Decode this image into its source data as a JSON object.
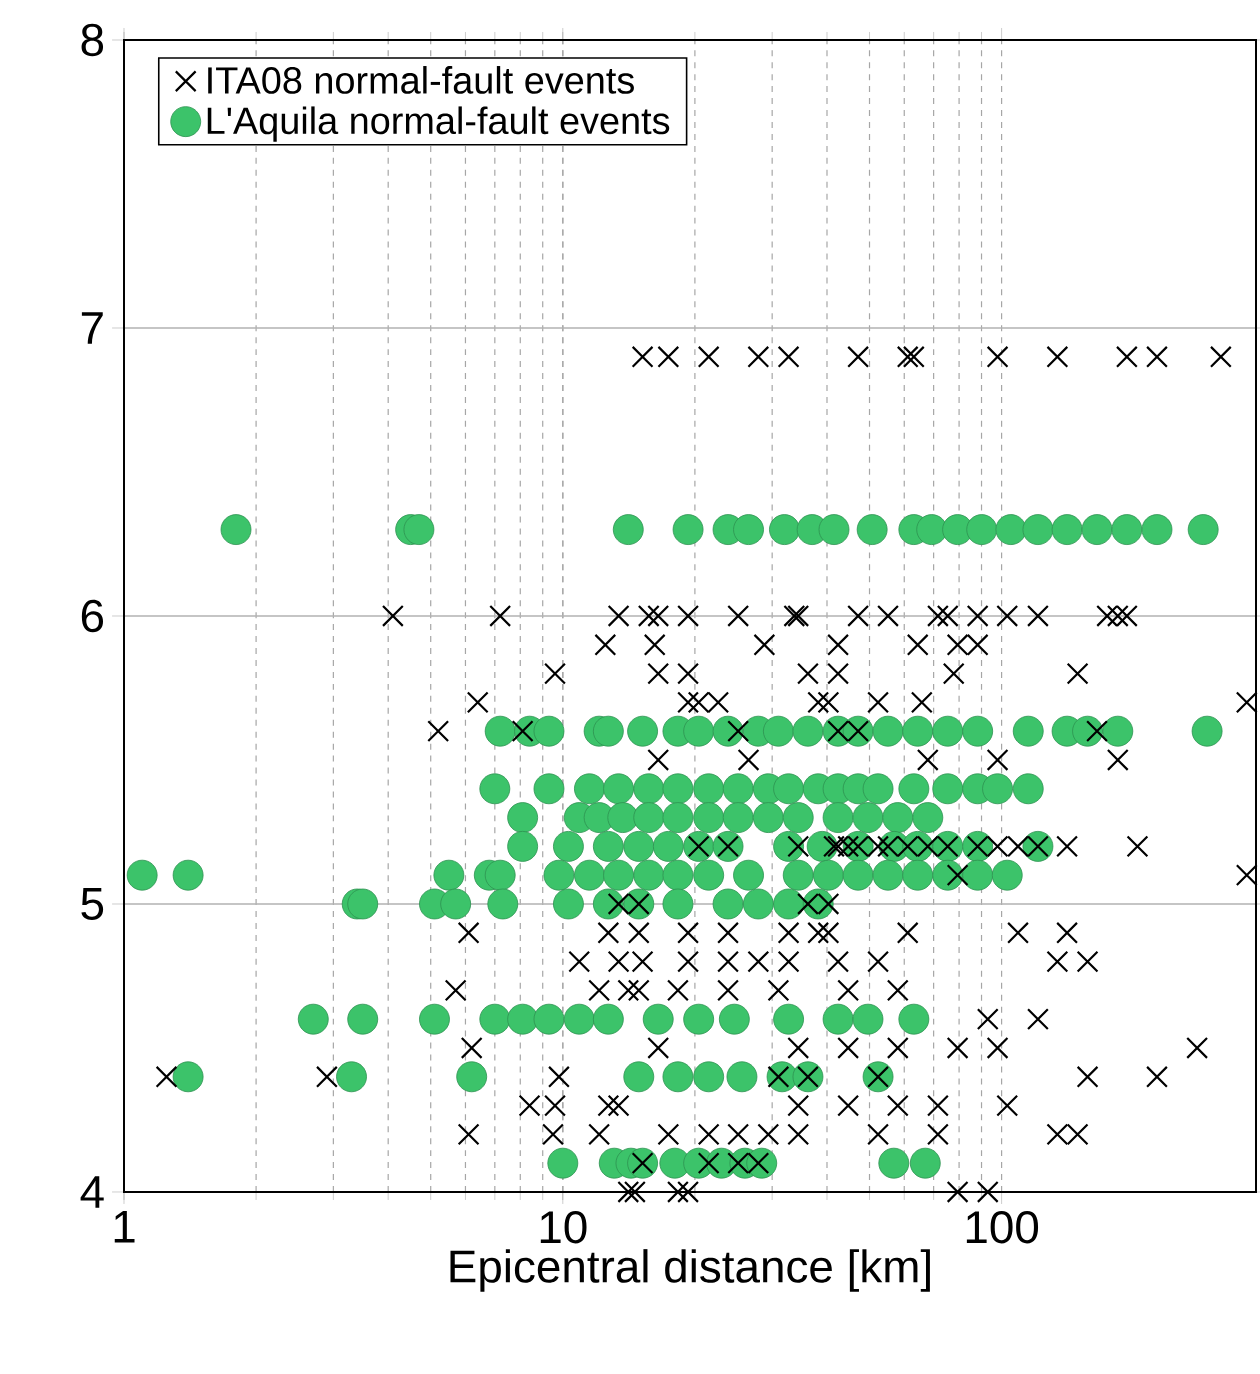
{
  "chart_data": {
    "type": "scatter",
    "xlabel": "Epicentral distance [km]",
    "log": "x",
    "grid": true,
    "legend": "top left",
    "xlim": [
      1,
      380
    ],
    "ylim": [
      4,
      8
    ],
    "xticks": [
      1,
      10,
      100
    ],
    "yticks": [
      4,
      5,
      6,
      7,
      8
    ],
    "series": [
      {
        "name": "ITA08 normal-fault events",
        "color": "#000000",
        "marker": "cross",
        "x": [
          15.2,
          17.4,
          21.5,
          27.9,
          32.7,
          47.1,
          61.1,
          63.1,
          97.9,
          134,
          193,
          226,
          316,
          4.1,
          7.2,
          13.4,
          15.7,
          16.5,
          19.3,
          25.1,
          33.7,
          34.4,
          47.1,
          55.1,
          71.6,
          75.4,
          88.2,
          103,
          121,
          174,
          184,
          193,
          12.5,
          16.2,
          28.8,
          42.4,
          64.4,
          79.4,
          88.2,
          9.6,
          16.5,
          19.3,
          36.2,
          42.4,
          77.8,
          149,
          6.4,
          19.3,
          20.4,
          22.6,
          38.2,
          40.3,
          52.3,
          65.8,
          362,
          5.2,
          8.1,
          25.1,
          42.4,
          47.1,
          165,
          16.5,
          26.5,
          67.9,
          97.9,
          184,
          20.4,
          23.8,
          34.4,
          41.5,
          42.4,
          44.7,
          47.1,
          52.3,
          55.1,
          61.1,
          67.9,
          75.4,
          88.2,
          97.9,
          109,
          121,
          141,
          204,
          79.4,
          362,
          13.4,
          14.9,
          36.2,
          40.3,
          6.1,
          12.7,
          14.9,
          19.3,
          23.8,
          32.7,
          38.2,
          40.3,
          61.1,
          109,
          141,
          10.9,
          13.4,
          15.2,
          19.3,
          23.8,
          27.9,
          32.7,
          42.4,
          52.3,
          134,
          157,
          5.7,
          12.1,
          14.1,
          14.9,
          18.3,
          23.8,
          31.0,
          44.7,
          58.0,
          93.0,
          121,
          6.2,
          16.5,
          34.4,
          44.7,
          58.0,
          79.4,
          97.9,
          279,
          1.25,
          2.9,
          9.8,
          31.0,
          36.2,
          52.3,
          157,
          226,
          8.4,
          9.6,
          12.7,
          13.4,
          34.4,
          44.7,
          58.0,
          71.6,
          103,
          6.1,
          9.5,
          12.1,
          17.4,
          21.5,
          25.1,
          29.4,
          34.4,
          52.3,
          71.6,
          134,
          149,
          15.2,
          21.5,
          25.1,
          27.9,
          14.1,
          14.6,
          18.3,
          19.3,
          79.4,
          93.0
        ],
        "values": [
          6.9,
          6.9,
          6.9,
          6.9,
          6.9,
          6.9,
          6.9,
          6.9,
          6.9,
          6.9,
          6.9,
          6.9,
          6.9,
          6.0,
          6.0,
          6.0,
          6.0,
          6.0,
          6.0,
          6.0,
          6.0,
          6.0,
          6.0,
          6.0,
          6.0,
          6.0,
          6.0,
          6.0,
          6.0,
          6.0,
          6.0,
          6.0,
          5.9,
          5.9,
          5.9,
          5.9,
          5.9,
          5.9,
          5.9,
          5.8,
          5.8,
          5.8,
          5.8,
          5.8,
          5.8,
          5.8,
          5.7,
          5.7,
          5.7,
          5.7,
          5.7,
          5.7,
          5.7,
          5.7,
          5.7,
          5.6,
          5.6,
          5.6,
          5.6,
          5.6,
          5.6,
          5.5,
          5.5,
          5.5,
          5.5,
          5.5,
          5.2,
          5.2,
          5.2,
          5.2,
          5.2,
          5.2,
          5.2,
          5.2,
          5.2,
          5.2,
          5.2,
          5.2,
          5.2,
          5.2,
          5.2,
          5.2,
          5.2,
          5.2,
          5.1,
          5.1,
          5.0,
          5.0,
          5.0,
          5.0,
          4.9,
          4.9,
          4.9,
          4.9,
          4.9,
          4.9,
          4.9,
          4.9,
          4.9,
          4.9,
          4.9,
          4.8,
          4.8,
          4.8,
          4.8,
          4.8,
          4.8,
          4.8,
          4.8,
          4.8,
          4.8,
          4.8,
          4.7,
          4.7,
          4.7,
          4.7,
          4.7,
          4.7,
          4.7,
          4.7,
          4.7,
          4.6,
          4.6,
          4.5,
          4.5,
          4.5,
          4.5,
          4.5,
          4.5,
          4.5,
          4.5,
          4.4,
          4.4,
          4.4,
          4.4,
          4.4,
          4.4,
          4.4,
          4.4,
          4.3,
          4.3,
          4.3,
          4.3,
          4.3,
          4.3,
          4.3,
          4.3,
          4.3,
          4.2,
          4.2,
          4.2,
          4.2,
          4.2,
          4.2,
          4.2,
          4.2,
          4.2,
          4.2,
          4.2,
          4.2,
          4.1,
          4.1,
          4.1,
          4.1,
          4.0,
          4.0,
          4.0,
          4.0,
          4.0,
          4.0
        ]
      },
      {
        "name": "L'Aquila normal-fault events",
        "color": "#3cc36a",
        "marker": "circle",
        "x": [
          1.8,
          4.5,
          4.7,
          14.1,
          19.3,
          23.8,
          26.5,
          32.0,
          37.0,
          41.5,
          50.7,
          63.1,
          69.3,
          79.4,
          90.1,
          105,
          121,
          141,
          165,
          193,
          226,
          288,
          7.2,
          8.4,
          9.3,
          12.1,
          12.7,
          15.2,
          18.3,
          20.4,
          23.8,
          27.9,
          31.0,
          36.2,
          42.4,
          47.1,
          55.1,
          64.4,
          75.4,
          88.2,
          115,
          141,
          157,
          184,
          294,
          7.0,
          9.3,
          11.5,
          13.4,
          15.7,
          18.3,
          21.5,
          25.1,
          29.4,
          32.7,
          38.2,
          42.4,
          47.1,
          52.3,
          63.1,
          75.4,
          88.2,
          97.9,
          115,
          8.1,
          10.9,
          12.1,
          13.7,
          15.7,
          18.3,
          21.5,
          25.1,
          29.4,
          34.4,
          42.4,
          49.6,
          58.0,
          67.9,
          8.1,
          10.3,
          12.7,
          14.9,
          17.4,
          20.4,
          23.8,
          32.7,
          39.0,
          47.1,
          56.9,
          64.4,
          75.4,
          88.2,
          121,
          1.1,
          1.4,
          5.5,
          6.8,
          7.2,
          9.8,
          11.5,
          13.4,
          15.7,
          18.3,
          21.5,
          26.5,
          34.4,
          40.3,
          47.1,
          55.1,
          64.4,
          75.4,
          88.2,
          103,
          3.4,
          3.5,
          5.1,
          5.7,
          7.3,
          10.3,
          12.7,
          14.9,
          18.3,
          23.8,
          27.9,
          32.7,
          38.2,
          2.7,
          3.5,
          5.1,
          7.0,
          8.1,
          9.3,
          10.9,
          12.7,
          16.5,
          20.4,
          24.6,
          32.7,
          42.4,
          49.6,
          63.1,
          1.4,
          3.3,
          6.2,
          14.9,
          18.3,
          21.5,
          25.6,
          31.6,
          36.2,
          52.3,
          10.0,
          13.1,
          14.3,
          15.2,
          18.0,
          20.4,
          23.0,
          26.0,
          28.4,
          56.8,
          67.0
        ],
        "values": [
          6.3,
          6.3,
          6.3,
          6.3,
          6.3,
          6.3,
          6.3,
          6.3,
          6.3,
          6.3,
          6.3,
          6.3,
          6.3,
          6.3,
          6.3,
          6.3,
          6.3,
          6.3,
          6.3,
          6.3,
          6.3,
          6.3,
          5.6,
          5.6,
          5.6,
          5.6,
          5.6,
          5.6,
          5.6,
          5.6,
          5.6,
          5.6,
          5.6,
          5.6,
          5.6,
          5.6,
          5.6,
          5.6,
          5.6,
          5.6,
          5.6,
          5.6,
          5.6,
          5.6,
          5.6,
          5.4,
          5.4,
          5.4,
          5.4,
          5.4,
          5.4,
          5.4,
          5.4,
          5.4,
          5.4,
          5.4,
          5.4,
          5.4,
          5.4,
          5.4,
          5.4,
          5.4,
          5.4,
          5.4,
          5.3,
          5.3,
          5.3,
          5.3,
          5.3,
          5.3,
          5.3,
          5.3,
          5.3,
          5.3,
          5.3,
          5.3,
          5.3,
          5.3,
          5.2,
          5.2,
          5.2,
          5.2,
          5.2,
          5.2,
          5.2,
          5.2,
          5.2,
          5.2,
          5.2,
          5.2,
          5.2,
          5.2,
          5.2,
          5.1,
          5.1,
          5.1,
          5.1,
          5.1,
          5.1,
          5.1,
          5.1,
          5.1,
          5.1,
          5.1,
          5.1,
          5.1,
          5.1,
          5.1,
          5.1,
          5.1,
          5.1,
          5.1,
          5.1,
          5.0,
          5.0,
          5.0,
          5.0,
          5.0,
          5.0,
          5.0,
          5.0,
          5.0,
          5.0,
          5.0,
          5.0,
          5.0,
          4.6,
          4.6,
          4.6,
          4.6,
          4.6,
          4.6,
          4.6,
          4.6,
          4.6,
          4.6,
          4.6,
          4.6,
          4.6,
          4.6,
          4.6,
          4.4,
          4.4,
          4.4,
          4.4,
          4.4,
          4.4,
          4.4,
          4.4,
          4.4,
          4.4,
          4.1,
          4.1,
          4.1,
          4.1,
          4.1,
          4.1,
          4.1,
          4.1,
          4.1,
          4.1,
          4.1
        ]
      }
    ]
  }
}
